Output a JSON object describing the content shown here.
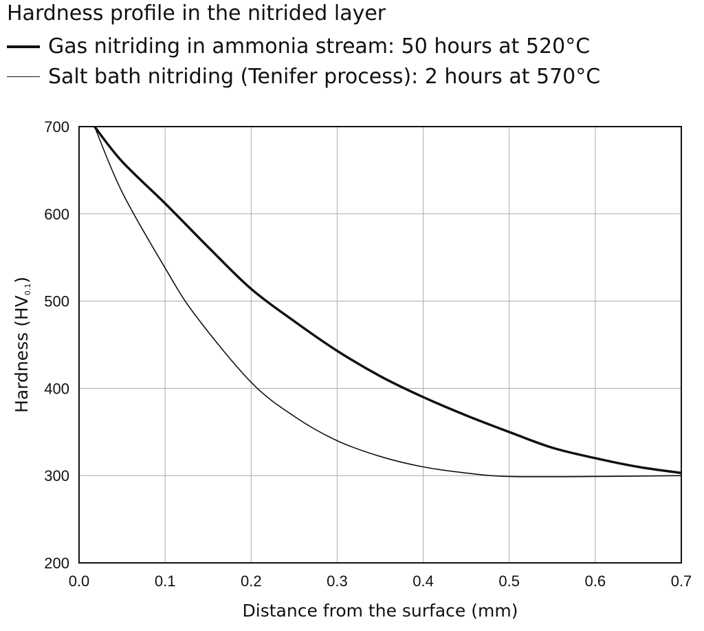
{
  "chart_data": {
    "type": "line",
    "title": "Hardness profile in the nitrided layer",
    "xlabel": "Distance from the surface (mm)",
    "ylabel": "Hardness (HV",
    "ylabel_sub": "0.1",
    "ylabel_end": ")",
    "xlim": [
      0.0,
      0.7
    ],
    "ylim": [
      200,
      700
    ],
    "grid": true,
    "legend": "top-left",
    "xticks": [
      "0.0",
      "0.1",
      "0.2",
      "0.3",
      "0.4",
      "0.5",
      "0.6",
      "0.7"
    ],
    "yticks": [
      "200",
      "300",
      "400",
      "500",
      "600",
      "700"
    ],
    "series": [
      {
        "name": "Gas nitriding in ammonia stream: 50 hours at 520°C",
        "color": "#111111",
        "weight": "bold",
        "x": [
          0.018,
          0.05,
          0.1,
          0.15,
          0.2,
          0.25,
          0.3,
          0.35,
          0.4,
          0.45,
          0.5,
          0.55,
          0.6,
          0.65,
          0.7
        ],
        "y": [
          700,
          660,
          612,
          562,
          514,
          477,
          443,
          414,
          390,
          369,
          350,
          332,
          320,
          310,
          303
        ]
      },
      {
        "name": "Salt bath nitriding (Tenifer process): 2 hours at 570°C",
        "color": "#111111",
        "weight": "thin",
        "x": [
          0.018,
          0.05,
          0.1,
          0.135,
          0.2,
          0.25,
          0.3,
          0.35,
          0.4,
          0.45,
          0.5,
          0.6,
          0.7
        ],
        "y": [
          700,
          625,
          538,
          484,
          407,
          368,
          340,
          322,
          310,
          303,
          299,
          299,
          300
        ]
      }
    ]
  }
}
